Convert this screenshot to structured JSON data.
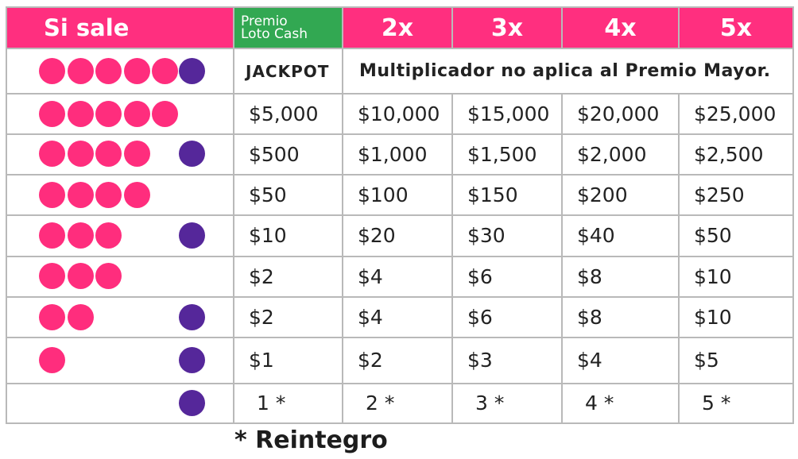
{
  "colors": {
    "header_pink": "#ff2f7f",
    "loto_cash_green": "#32a852",
    "pink_ball": "#ff2d7d",
    "purple_ball": "#55279a",
    "border": "#b9b9b9"
  },
  "header": {
    "si_sale": "Si sale",
    "loto_cash_line1": "Premio",
    "loto_cash_line2": "Loto Cash",
    "multipliers": [
      "2x",
      "3x",
      "4x",
      "5x"
    ]
  },
  "jackpot_row": {
    "pink": 5,
    "purple": true,
    "label": "JACKPOT",
    "note": "Multiplicador no aplica al Premio Mayor."
  },
  "rows": [
    {
      "pink": 5,
      "purple": false,
      "values": [
        "$5,000",
        "$10,000",
        "$15,000",
        "$20,000",
        "$25,000"
      ]
    },
    {
      "pink": 4,
      "purple": true,
      "values": [
        "$500",
        "$1,000",
        "$1,500",
        "$2,000",
        "$2,500"
      ]
    },
    {
      "pink": 4,
      "purple": false,
      "values": [
        "$50",
        "$100",
        "$150",
        "$200",
        "$250"
      ]
    },
    {
      "pink": 3,
      "purple": true,
      "values": [
        "$10",
        "$20",
        "$30",
        "$40",
        "$50"
      ]
    },
    {
      "pink": 3,
      "purple": false,
      "values": [
        "$2",
        "$4",
        "$6",
        "$8",
        "$10"
      ]
    },
    {
      "pink": 2,
      "purple": true,
      "values": [
        "$2",
        "$4",
        "$6",
        "$8",
        "$10"
      ]
    },
    {
      "pink": 1,
      "purple": true,
      "values": [
        "$1",
        "$2",
        "$3",
        "$4",
        "$5"
      ]
    },
    {
      "pink": 0,
      "purple": true,
      "values": [
        "1 *",
        "2 *",
        "3 *",
        "4 *",
        "5 *"
      ]
    }
  ],
  "footnote": "* Reintegro"
}
